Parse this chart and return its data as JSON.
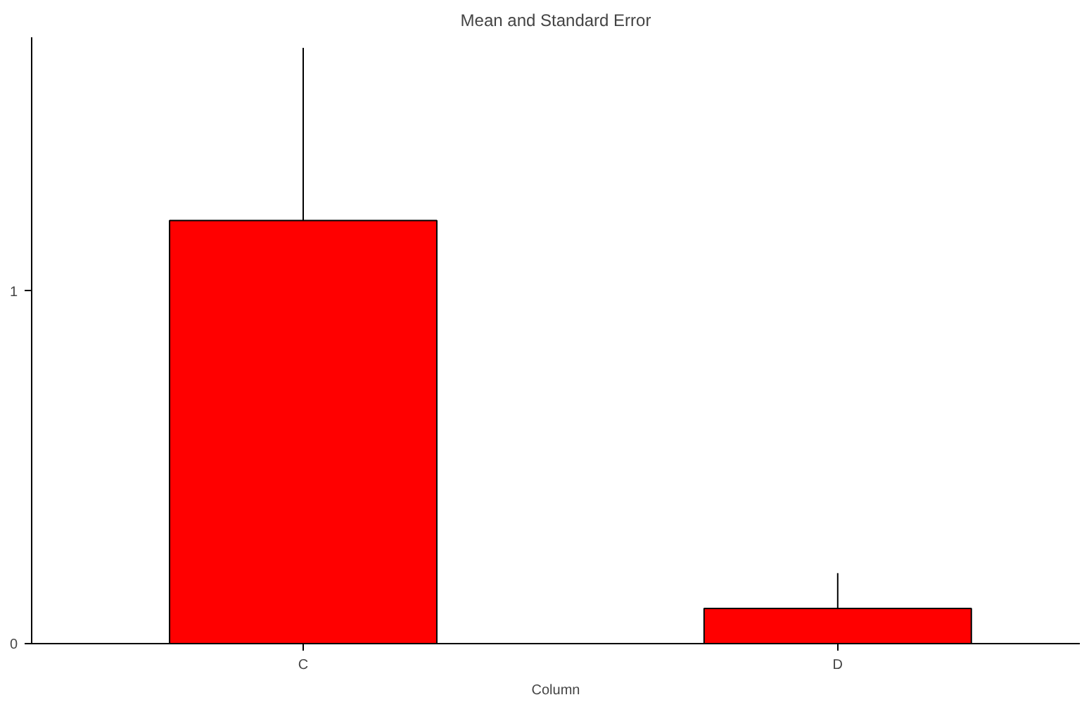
{
  "chart_data": {
    "type": "bar",
    "title": "Mean and Standard Error",
    "xlabel": "Column",
    "categories": [
      "C",
      "D"
    ],
    "values": [
      1.2,
      0.1
    ],
    "errors": [
      [
        1.2,
        1.69
      ],
      [
        0.1,
        0.2
      ]
    ],
    "color": "#ff0000",
    "ylim": [
      0,
      1.72
    ],
    "yticks": [
      0,
      1
    ],
    "grid": false
  }
}
